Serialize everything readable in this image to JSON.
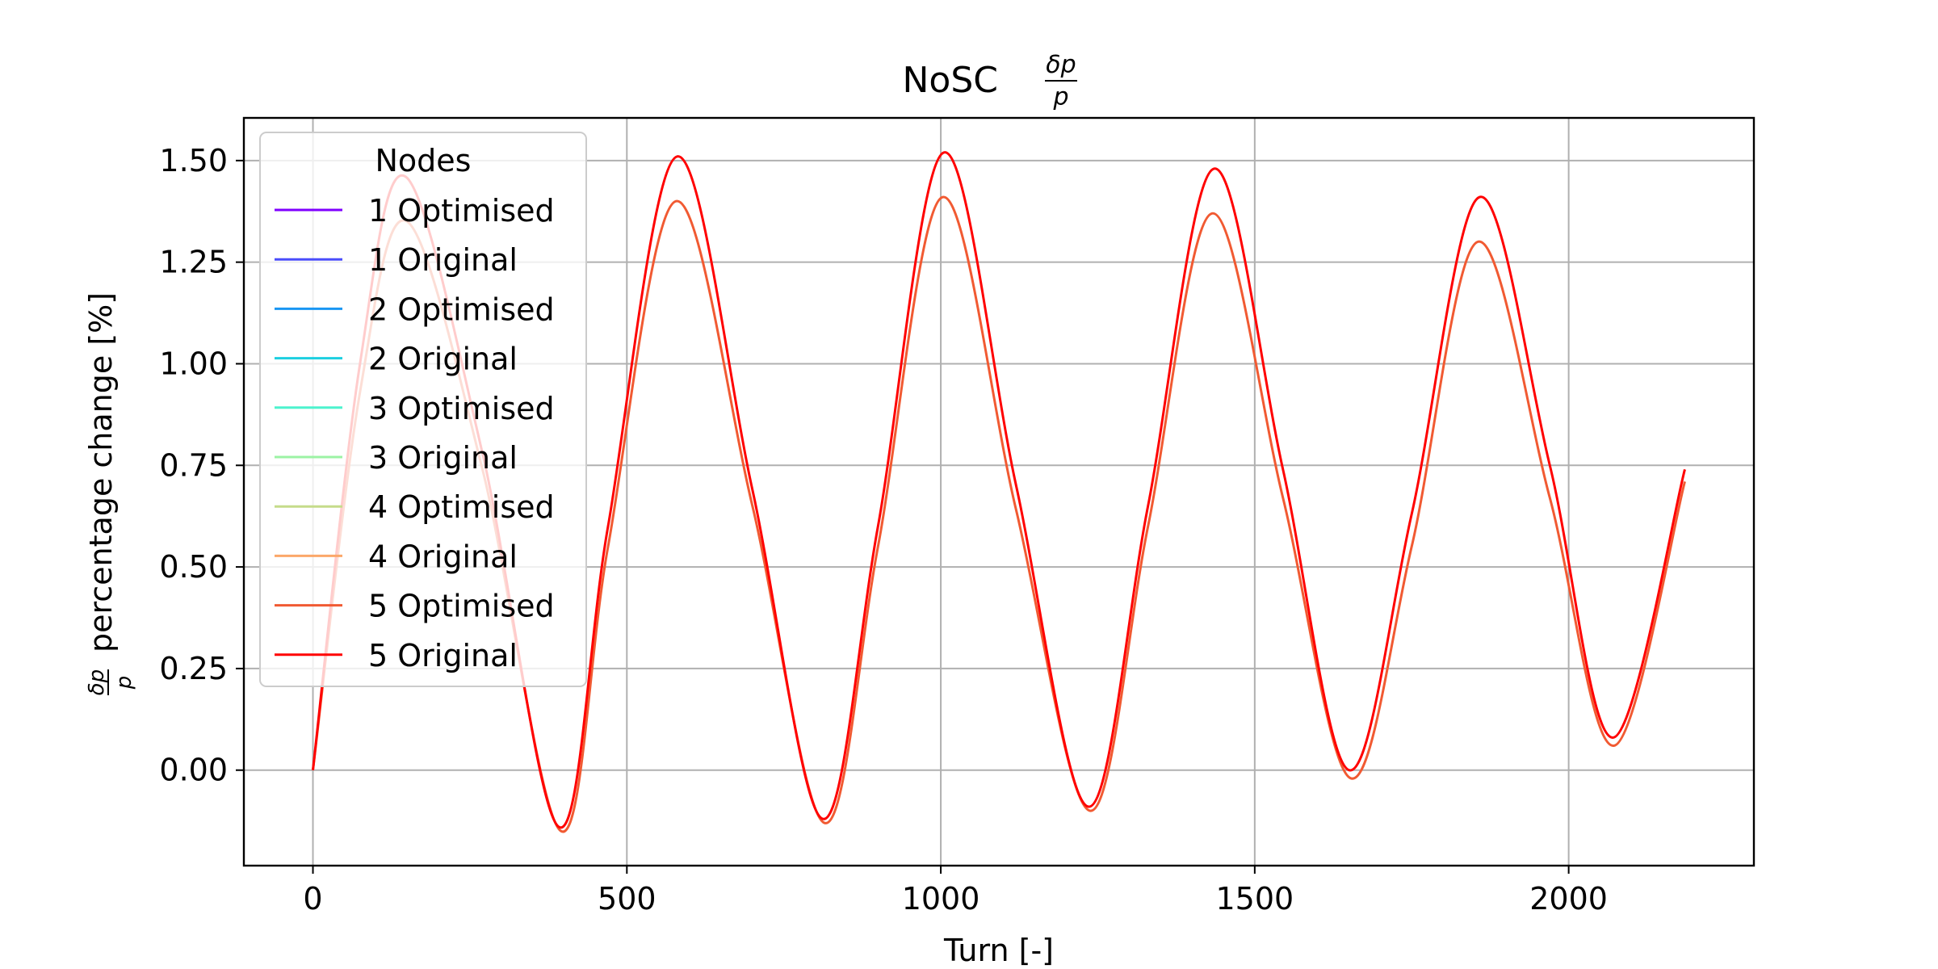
{
  "chart_data": {
    "type": "line",
    "title_main": "NoSC ",
    "title_frac_num": "δp",
    "title_frac_den": "p",
    "xlabel": "Turn [-]",
    "ylabel_frac_num": "δp",
    "ylabel_frac_den": "p",
    "ylabel": "percentage change [%]",
    "xlim": [
      -110,
      2295
    ],
    "ylim": [
      -0.235,
      1.605
    ],
    "xticks": [
      0,
      500,
      1000,
      1500,
      2000
    ],
    "xtick_labels": [
      "0",
      "500",
      "1000",
      "1500",
      "2000"
    ],
    "yticks": [
      0.0,
      0.25,
      0.5,
      0.75,
      1.0,
      1.25,
      1.5
    ],
    "ytick_labels": [
      "0.00",
      "0.25",
      "0.50",
      "0.75",
      "1.00",
      "1.25",
      "1.50"
    ],
    "grid": true,
    "legend": {
      "title": "Nodes",
      "placement": "upper-left",
      "entries": [
        {
          "label": "1 Optimised",
          "color": "#7f00ff"
        },
        {
          "label": "1 Original",
          "color": "#4a4dfb"
        },
        {
          "label": "2 Optimised",
          "color": "#1996f3"
        },
        {
          "label": "2 Original",
          "color": "#1bcfe0"
        },
        {
          "label": "3 Optimised",
          "color": "#4df3ce"
        },
        {
          "label": "3 Original",
          "color": "#9cf3a4"
        },
        {
          "label": "4 Optimised",
          "color": "#c5dc8a"
        },
        {
          "label": "4 Original",
          "color": "#fba769"
        },
        {
          "label": "5 Optimised",
          "color": "#f15a32"
        },
        {
          "label": "5 Original",
          "color": "#ff0000"
        }
      ]
    },
    "series": [
      {
        "name": "5 Optimised",
        "color": "#f15a32",
        "x": [
          0,
          75,
          150,
          270,
          395,
          470,
          578,
          700,
          815,
          900,
          1003,
          1120,
          1238,
          1330,
          1432,
          1545,
          1653,
          1750,
          1855,
          1970,
          2072,
          2185
        ],
        "y": [
          0.0,
          0.93,
          1.35,
          0.74,
          -0.15,
          0.55,
          1.4,
          0.65,
          -0.13,
          0.55,
          1.41,
          0.64,
          -0.1,
          0.6,
          1.37,
          0.67,
          -0.02,
          0.55,
          1.3,
          0.67,
          0.06,
          0.71
        ]
      },
      {
        "name": "5 Original",
        "color": "#ff0000",
        "x": [
          0,
          75,
          148,
          270,
          392,
          470,
          580,
          700,
          812,
          900,
          1005,
          1120,
          1235,
          1330,
          1435,
          1545,
          1650,
          1750,
          1858,
          1970,
          2070,
          2185
        ],
        "y": [
          0.0,
          1.0,
          1.46,
          0.78,
          -0.14,
          0.6,
          1.51,
          0.69,
          -0.12,
          0.6,
          1.52,
          0.7,
          -0.09,
          0.65,
          1.48,
          0.74,
          0.0,
          0.63,
          1.41,
          0.75,
          0.08,
          0.74
        ]
      }
    ]
  }
}
